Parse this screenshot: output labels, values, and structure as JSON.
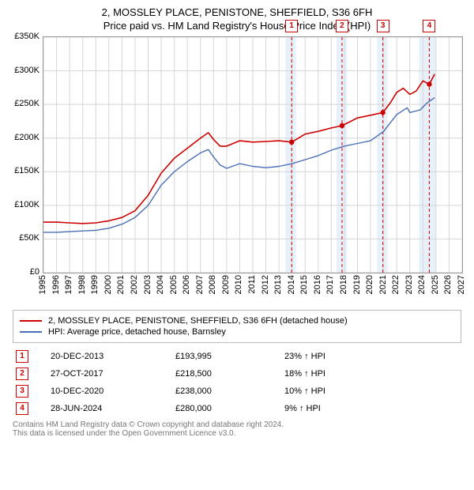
{
  "title": {
    "line1": "2, MOSSLEY PLACE, PENISTONE, SHEFFIELD, S36 6FH",
    "line2": "Price paid vs. HM Land Registry's House Price Index (HPI)"
  },
  "chart": {
    "type": "line",
    "background_color": "#ffffff",
    "border_color": "#999999",
    "grid_color": "#d6d6d6",
    "xlim": [
      1995,
      2027
    ],
    "ylim": [
      0,
      350000
    ],
    "ytick_step": 50000,
    "yticks_labels": [
      "£0",
      "£50K",
      "£100K",
      "£150K",
      "£200K",
      "£250K",
      "£300K",
      "£350K"
    ],
    "xticks": [
      1995,
      1996,
      1997,
      1998,
      1999,
      2000,
      2001,
      2002,
      2003,
      2004,
      2005,
      2006,
      2007,
      2008,
      2009,
      2010,
      2011,
      2012,
      2013,
      2014,
      2015,
      2016,
      2017,
      2018,
      2019,
      2020,
      2021,
      2022,
      2023,
      2024,
      2025,
      2026,
      2027
    ],
    "band_color": "#e8f0fa",
    "bands": [
      [
        2013.5,
        2014.3
      ],
      [
        2017.4,
        2018.2
      ],
      [
        2020.5,
        2021.3
      ],
      [
        2023.7,
        2025.0
      ]
    ],
    "event_line_color": "#cc0000",
    "event_line_dash": "4 3",
    "event_marker_color": "#cc0000",
    "event_dot_fill": "#cc0000",
    "events": [
      {
        "n": "1",
        "year": 2013.97,
        "price": 193995
      },
      {
        "n": "2",
        "year": 2017.82,
        "price": 218500
      },
      {
        "n": "3",
        "year": 2020.94,
        "price": 238000
      },
      {
        "n": "4",
        "year": 2024.49,
        "price": 280000
      }
    ],
    "series": [
      {
        "name": "price_paid",
        "color": "#cc0000",
        "width": 1.6,
        "points": [
          [
            1995,
            75000
          ],
          [
            1996,
            75000
          ],
          [
            1997,
            74000
          ],
          [
            1998,
            73000
          ],
          [
            1999,
            74000
          ],
          [
            2000,
            77000
          ],
          [
            2001,
            82000
          ],
          [
            2002,
            92000
          ],
          [
            2003,
            115000
          ],
          [
            2004,
            148000
          ],
          [
            2005,
            170000
          ],
          [
            2006,
            185000
          ],
          [
            2007,
            200000
          ],
          [
            2007.6,
            208000
          ],
          [
            2008,
            198000
          ],
          [
            2008.5,
            188000
          ],
          [
            2009,
            188000
          ],
          [
            2010,
            196000
          ],
          [
            2011,
            194000
          ],
          [
            2012,
            195000
          ],
          [
            2013,
            196000
          ],
          [
            2013.97,
            193995
          ],
          [
            2014.5,
            200000
          ],
          [
            2015,
            206000
          ],
          [
            2016,
            210000
          ],
          [
            2017,
            215000
          ],
          [
            2017.82,
            218500
          ],
          [
            2018.5,
            225000
          ],
          [
            2019,
            230000
          ],
          [
            2020,
            234000
          ],
          [
            2020.94,
            238000
          ],
          [
            2021.5,
            252000
          ],
          [
            2022,
            268000
          ],
          [
            2022.5,
            274000
          ],
          [
            2023,
            265000
          ],
          [
            2023.5,
            270000
          ],
          [
            2024,
            285000
          ],
          [
            2024.49,
            280000
          ],
          [
            2024.9,
            295000
          ]
        ]
      },
      {
        "name": "hpi",
        "color": "#4a6fb5",
        "width": 1.4,
        "points": [
          [
            1995,
            60000
          ],
          [
            1996,
            60000
          ],
          [
            1997,
            61000
          ],
          [
            1998,
            62000
          ],
          [
            1999,
            63000
          ],
          [
            2000,
            66000
          ],
          [
            2001,
            72000
          ],
          [
            2002,
            82000
          ],
          [
            2003,
            100000
          ],
          [
            2004,
            130000
          ],
          [
            2005,
            150000
          ],
          [
            2006,
            165000
          ],
          [
            2007,
            178000
          ],
          [
            2007.6,
            183000
          ],
          [
            2008,
            172000
          ],
          [
            2008.5,
            160000
          ],
          [
            2009,
            155000
          ],
          [
            2010,
            162000
          ],
          [
            2011,
            158000
          ],
          [
            2012,
            156000
          ],
          [
            2013,
            158000
          ],
          [
            2014,
            162000
          ],
          [
            2015,
            168000
          ],
          [
            2016,
            174000
          ],
          [
            2017,
            182000
          ],
          [
            2018,
            188000
          ],
          [
            2019,
            192000
          ],
          [
            2020,
            196000
          ],
          [
            2021,
            210000
          ],
          [
            2022,
            235000
          ],
          [
            2022.8,
            245000
          ],
          [
            2023,
            238000
          ],
          [
            2023.8,
            242000
          ],
          [
            2024.3,
            252000
          ],
          [
            2024.9,
            260000
          ]
        ]
      }
    ]
  },
  "legend": {
    "items": [
      {
        "color": "#cc0000",
        "label": "2, MOSSLEY PLACE, PENISTONE, SHEFFIELD, S36 6FH (detached house)"
      },
      {
        "color": "#4a6fb5",
        "label": "HPI: Average price, detached house, Barnsley"
      }
    ]
  },
  "events_table": {
    "rows": [
      {
        "n": "1",
        "date": "20-DEC-2013",
        "price": "£193,995",
        "pct": "23% ↑ HPI"
      },
      {
        "n": "2",
        "date": "27-OCT-2017",
        "price": "£218,500",
        "pct": "18% ↑ HPI"
      },
      {
        "n": "3",
        "date": "10-DEC-2020",
        "price": "£238,000",
        "pct": "10% ↑ HPI"
      },
      {
        "n": "4",
        "date": "28-JUN-2024",
        "price": "£280,000",
        "pct": "9% ↑ HPI"
      }
    ]
  },
  "footer": {
    "line1": "Contains HM Land Registry data © Crown copyright and database right 2024.",
    "line2": "This data is licensed under the Open Government Licence v3.0."
  }
}
